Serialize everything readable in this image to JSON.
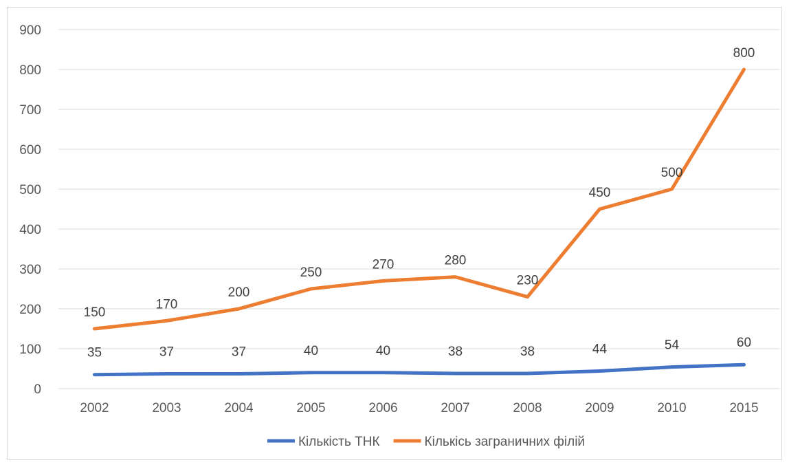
{
  "chart_data": {
    "type": "line",
    "title": "",
    "xlabel": "",
    "ylabel": "",
    "categories": [
      "2002",
      "2003",
      "2004",
      "2005",
      "2006",
      "2007",
      "2008",
      "2009",
      "2010",
      "2015"
    ],
    "ylim": [
      0,
      900
    ],
    "yticks": [
      0,
      100,
      200,
      300,
      400,
      500,
      600,
      700,
      800,
      900
    ],
    "grid": "horizontal",
    "legend": "bottom",
    "series": [
      {
        "name": "Кількість ТНК",
        "color": "#4472c4",
        "values": [
          35,
          37,
          37,
          40,
          40,
          38,
          38,
          44,
          54,
          60
        ]
      },
      {
        "name": "Кількісь заграничних філій",
        "color": "#ed7d31",
        "values": [
          150,
          170,
          200,
          250,
          270,
          280,
          230,
          450,
          500,
          800
        ]
      }
    ]
  }
}
